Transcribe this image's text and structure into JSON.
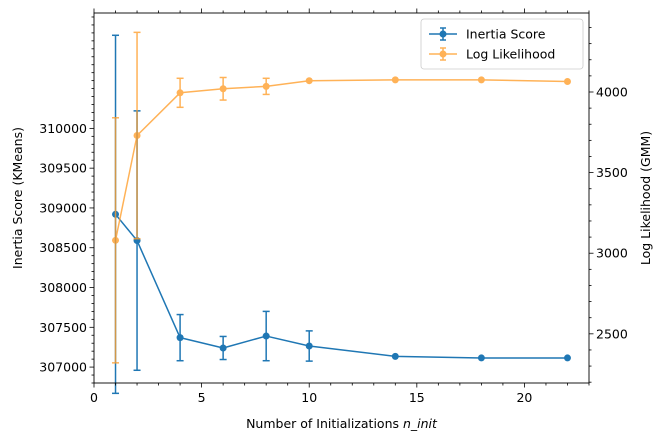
{
  "chart_data": {
    "type": "line",
    "title": "",
    "x": [
      1,
      2,
      4,
      6,
      8,
      10,
      14,
      18,
      22
    ],
    "xlabel": {
      "prefix": "Number of Initializations ",
      "italic": "n_init"
    },
    "ylabel_left": "Inertia Score (KMeans)",
    "ylabel_right": "Log Likelihood (GMM)",
    "xlim": [
      0,
      23
    ],
    "ylim_left": [
      306800,
      311450
    ],
    "ylim_right": [
      2195,
      4490
    ],
    "xticks": [
      0,
      5,
      10,
      15,
      20
    ],
    "yticks_left": [
      307000,
      307500,
      308000,
      308500,
      309000,
      309500,
      310000
    ],
    "yticks_right": [
      2500,
      3000,
      3500,
      4000
    ],
    "grid": false,
    "legend_position": "top-right",
    "series": [
      {
        "name": "Inertia Score",
        "axis": "left",
        "color": "#1f77b4",
        "values": [
          308920,
          308590,
          307370,
          307240,
          307390,
          307265,
          307135,
          307115,
          307115
        ],
        "yerr": [
          2250,
          1630,
          290,
          145,
          310,
          190,
          0,
          0,
          0
        ]
      },
      {
        "name": "Log Likelihood",
        "axis": "right",
        "color": "#ff9f2e",
        "values": [
          3080,
          3730,
          3995,
          4020,
          4035,
          4070,
          4075,
          4075,
          4065
        ],
        "yerr": [
          760,
          640,
          90,
          70,
          50,
          0,
          0,
          0,
          0
        ]
      }
    ]
  }
}
